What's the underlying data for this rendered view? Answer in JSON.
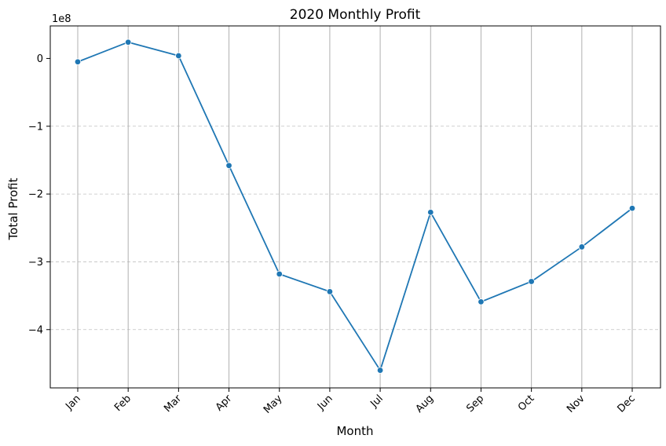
{
  "chart_data": {
    "type": "line",
    "title": "2020 Monthly Profit",
    "xlabel": "Month",
    "ylabel": "Total Profit",
    "y_multiplier_label": "1e8",
    "y_multiplier": 100000000,
    "categories": [
      "Jan",
      "Feb",
      "Mar",
      "Apr",
      "May",
      "Jun",
      "Jul",
      "Aug",
      "Sep",
      "Oct",
      "Nov",
      "Dec"
    ],
    "series": [
      {
        "values": [
          -5000000,
          24000000,
          4000000,
          -158000000,
          -318000000,
          -344000000,
          -460000000,
          -227000000,
          -359000000,
          -329000000,
          -278000000,
          -221000000
        ]
      }
    ],
    "y_ticks": [
      0,
      -1,
      -2,
      -3,
      -4
    ],
    "y_tick_labels": [
      "0",
      "−1",
      "−2",
      "−3",
      "−4"
    ],
    "ylim": [
      -486000000,
      48000000
    ],
    "grid": {
      "x": "solid",
      "y": "dashed"
    },
    "colors": {
      "line": "#1f77b4",
      "marker": "#1f77b4",
      "grid": "#b0b0b0",
      "axes": "#000000"
    }
  }
}
